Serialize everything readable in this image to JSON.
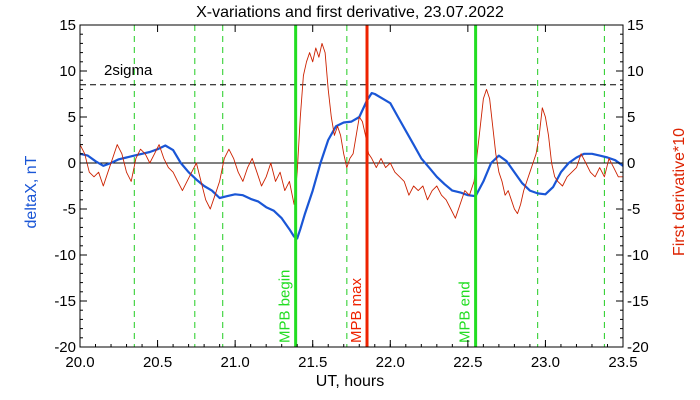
{
  "chart_data": {
    "type": "line",
    "title": "X-variations and first derivative, 23.07.2022",
    "xlabel": "UT, hours",
    "ylabel_left": "deltaX, nT",
    "ylabel_right": "First derivative*10",
    "xlim": [
      20.0,
      23.5
    ],
    "ylim": [
      -20,
      15
    ],
    "x_ticks": [
      "20.0",
      "20.5",
      "21.0",
      "21.5",
      "22.0",
      "22.5",
      "23.0",
      "23.5"
    ],
    "y_ticks_left": [
      "-20",
      "-15",
      "-10",
      "-5",
      "0",
      "5",
      "10",
      "15"
    ],
    "y_ticks_right": [
      "-20",
      "-15",
      "-10",
      "-5",
      "0",
      "5",
      "10",
      "15"
    ],
    "grid": false,
    "threshold": {
      "label": "2sigma",
      "value": 8.5
    },
    "zero_line": 0,
    "events": [
      {
        "label": "MPB begin",
        "x": 21.39,
        "color": "#22dd22"
      },
      {
        "label": "MPB max",
        "x": 21.85,
        "color": "#ee2200"
      },
      {
        "label": "MPB end",
        "x": 22.55,
        "color": "#22dd22"
      }
    ],
    "dashed_markers": [
      20.35,
      20.74,
      20.92,
      21.72,
      22.95,
      23.38
    ],
    "series": [
      {
        "axis": "left",
        "color": "#1a56d6",
        "x": [
          20.0,
          20.05,
          20.1,
          20.15,
          20.2,
          20.25,
          20.3,
          20.35,
          20.4,
          20.45,
          20.5,
          20.55,
          20.6,
          20.65,
          20.7,
          20.75,
          20.8,
          20.85,
          20.9,
          20.95,
          21.0,
          21.05,
          21.1,
          21.15,
          21.2,
          21.25,
          21.3,
          21.35,
          21.38,
          21.4,
          21.42,
          21.45,
          21.5,
          21.55,
          21.6,
          21.65,
          21.7,
          21.75,
          21.8,
          21.85,
          21.88,
          21.9,
          21.95,
          22.0,
          22.05,
          22.1,
          22.15,
          22.2,
          22.25,
          22.3,
          22.35,
          22.4,
          22.45,
          22.5,
          22.55,
          22.6,
          22.65,
          22.7,
          22.75,
          22.8,
          22.85,
          22.9,
          22.95,
          23.0,
          23.05,
          23.1,
          23.15,
          23.2,
          23.25,
          23.3,
          23.35,
          23.4,
          23.45,
          23.5
        ],
        "values": [
          1.0,
          0.8,
          0.2,
          -0.3,
          0.0,
          0.4,
          0.6,
          0.8,
          1.0,
          1.2,
          1.5,
          1.9,
          1.4,
          0.0,
          -1.0,
          -1.8,
          -2.5,
          -3.0,
          -3.8,
          -3.6,
          -3.4,
          -3.5,
          -3.9,
          -4.2,
          -4.8,
          -5.2,
          -6.0,
          -7.2,
          -8.0,
          -8.2,
          -7.2,
          -5.5,
          -3.0,
          0.0,
          2.5,
          4.0,
          4.4,
          4.5,
          5.0,
          6.8,
          7.6,
          7.5,
          7.0,
          6.5,
          5.0,
          3.5,
          2.0,
          0.5,
          -0.5,
          -1.5,
          -2.3,
          -3.0,
          -3.2,
          -3.5,
          -3.6,
          -2.0,
          0.0,
          0.8,
          0.2,
          -1.0,
          -2.2,
          -3.0,
          -3.3,
          -3.4,
          -2.6,
          -1.0,
          0.0,
          0.6,
          1.0,
          1.0,
          0.8,
          0.6,
          0.3,
          -0.3
        ]
      },
      {
        "axis": "right",
        "color": "#cc2200",
        "x": [
          20.0,
          20.03,
          20.06,
          20.09,
          20.12,
          20.15,
          20.18,
          20.21,
          20.24,
          20.27,
          20.3,
          20.33,
          20.36,
          20.39,
          20.42,
          20.45,
          20.48,
          20.51,
          20.54,
          20.57,
          20.6,
          20.63,
          20.66,
          20.69,
          20.72,
          20.75,
          20.78,
          20.81,
          20.84,
          20.87,
          20.9,
          20.93,
          20.96,
          20.99,
          21.02,
          21.05,
          21.08,
          21.11,
          21.14,
          21.17,
          21.2,
          21.23,
          21.26,
          21.29,
          21.32,
          21.35,
          21.38,
          21.4,
          21.42,
          21.44,
          21.46,
          21.48,
          21.5,
          21.52,
          21.54,
          21.56,
          21.58,
          21.6,
          21.62,
          21.64,
          21.66,
          21.68,
          21.7,
          21.72,
          21.74,
          21.76,
          21.78,
          21.8,
          21.82,
          21.84,
          21.86,
          21.88,
          21.91,
          21.94,
          21.97,
          22.0,
          22.03,
          22.06,
          22.09,
          22.12,
          22.15,
          22.18,
          22.21,
          22.24,
          22.27,
          22.3,
          22.33,
          22.36,
          22.39,
          22.42,
          22.45,
          22.48,
          22.51,
          22.54,
          22.56,
          22.58,
          22.6,
          22.62,
          22.64,
          22.66,
          22.68,
          22.7,
          22.72,
          22.74,
          22.76,
          22.78,
          22.8,
          22.82,
          22.84,
          22.86,
          22.88,
          22.9,
          22.92,
          22.94,
          22.96,
          22.98,
          23.0,
          23.02,
          23.04,
          23.06,
          23.08,
          23.11,
          23.14,
          23.17,
          23.2,
          23.23,
          23.26,
          23.29,
          23.32,
          23.35,
          23.38,
          23.41,
          23.44,
          23.47,
          23.5
        ],
        "values": [
          2.0,
          1.0,
          -1.0,
          -1.5,
          -1.0,
          -2.5,
          -1.0,
          0.5,
          2.0,
          1.0,
          -1.0,
          -2.0,
          0.5,
          1.5,
          1.0,
          0.0,
          1.0,
          2.0,
          0.5,
          -0.5,
          -1.0,
          -2.0,
          -3.0,
          -2.0,
          -1.0,
          0.0,
          -2.0,
          -4.0,
          -5.0,
          -3.5,
          -2.0,
          0.5,
          1.5,
          0.5,
          -1.0,
          -2.0,
          -0.5,
          0.5,
          -1.0,
          -2.5,
          -1.5,
          0.0,
          -2.0,
          -1.0,
          -3.0,
          -2.0,
          -4.5,
          -1.0,
          5.0,
          9.5,
          11.0,
          12.0,
          11.0,
          12.5,
          11.5,
          13.0,
          12.0,
          8.0,
          5.0,
          3.0,
          4.0,
          3.0,
          1.0,
          -0.5,
          0.5,
          1.0,
          3.0,
          5.0,
          4.5,
          3.0,
          1.0,
          0.5,
          -0.5,
          0.5,
          -0.5,
          0.0,
          -1.0,
          -1.5,
          -2.0,
          -3.5,
          -2.5,
          -3.0,
          -2.5,
          -4.0,
          -3.0,
          -2.5,
          -3.5,
          -4.0,
          -5.0,
          -6.0,
          -4.5,
          -3.0,
          -3.5,
          -2.0,
          1.0,
          4.0,
          7.0,
          8.0,
          7.0,
          4.0,
          1.0,
          -1.0,
          -2.0,
          -3.5,
          -3.0,
          -4.0,
          -5.0,
          -5.5,
          -4.5,
          -3.0,
          -2.0,
          -1.0,
          0.0,
          1.0,
          3.0,
          6.0,
          5.0,
          3.0,
          0.0,
          -1.5,
          -2.0,
          -2.5,
          -1.5,
          -1.0,
          -0.5,
          1.0,
          0.0,
          -1.0,
          -1.5,
          -0.5,
          -1.5,
          0.5,
          -0.5,
          -1.5,
          -1.5
        ]
      }
    ]
  }
}
